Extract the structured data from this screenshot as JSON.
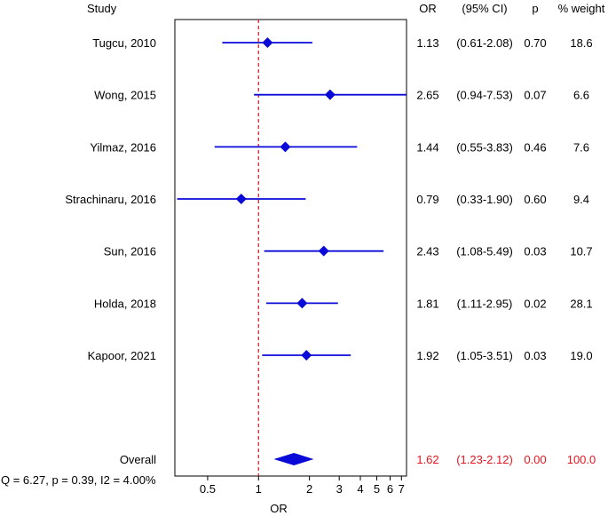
{
  "chart_data": {
    "type": "forest",
    "title": "",
    "xlabel": "OR",
    "x_scale": "log",
    "xlim": [
      0.32,
      7.5
    ],
    "reference_line": 1,
    "x_ticks": [
      0.5,
      1,
      2,
      3,
      4,
      5,
      6,
      7
    ],
    "x_tick_labels": [
      "0.5",
      "1",
      "2",
      "3",
      "4",
      "5",
      "6",
      "7"
    ],
    "headers": {
      "study": "Study",
      "or": "OR",
      "ci": "(95% CI)",
      "p": "p",
      "weight": "% weight"
    },
    "studies": [
      {
        "name": "Tugcu, 2010",
        "or": 1.13,
        "lower": 0.61,
        "upper": 2.08,
        "or_text": "1.13",
        "ci_text": "(0.61-2.08)",
        "p_text": "0.70",
        "weight_text": "18.6"
      },
      {
        "name": "Wong, 2015",
        "or": 2.65,
        "lower": 0.94,
        "upper": 7.53,
        "or_text": "2.65",
        "ci_text": "(0.94-7.53)",
        "p_text": "0.07",
        "weight_text": "6.6"
      },
      {
        "name": "Yilmaz, 2016",
        "or": 1.44,
        "lower": 0.55,
        "upper": 3.83,
        "or_text": "1.44",
        "ci_text": "(0.55-3.83)",
        "p_text": "0.46",
        "weight_text": "7.6"
      },
      {
        "name": "Strachinaru, 2016",
        "or": 0.79,
        "lower": 0.33,
        "upper": 1.9,
        "or_text": "0.79",
        "ci_text": "(0.33-1.90)",
        "p_text": "0.60",
        "weight_text": "9.4"
      },
      {
        "name": "Sun, 2016",
        "or": 2.43,
        "lower": 1.08,
        "upper": 5.49,
        "or_text": "2.43",
        "ci_text": "(1.08-5.49)",
        "p_text": "0.03",
        "weight_text": "10.7"
      },
      {
        "name": "Holda, 2018",
        "or": 1.81,
        "lower": 1.11,
        "upper": 2.95,
        "or_text": "1.81",
        "ci_text": "(1.11-2.95)",
        "p_text": "0.02",
        "weight_text": "28.1"
      },
      {
        "name": "Kapoor, 2021",
        "or": 1.92,
        "lower": 1.05,
        "upper": 3.51,
        "or_text": "1.92",
        "ci_text": "(1.05-3.51)",
        "p_text": "0.03",
        "weight_text": "19.0"
      }
    ],
    "overall": {
      "name": "Overall",
      "or": 1.62,
      "lower": 1.23,
      "upper": 2.12,
      "or_text": "1.62",
      "ci_text": "(1.23-2.12)",
      "p_text": "0.00",
      "weight_text": "100.0"
    },
    "heterogeneity": "Q = 6.27, p = 0.39, I2 = 4.00%",
    "colors": {
      "marker": "#0a0ad8",
      "reference": "#e8141c",
      "overall_text": "#e8141c",
      "axis": "#000000"
    }
  }
}
